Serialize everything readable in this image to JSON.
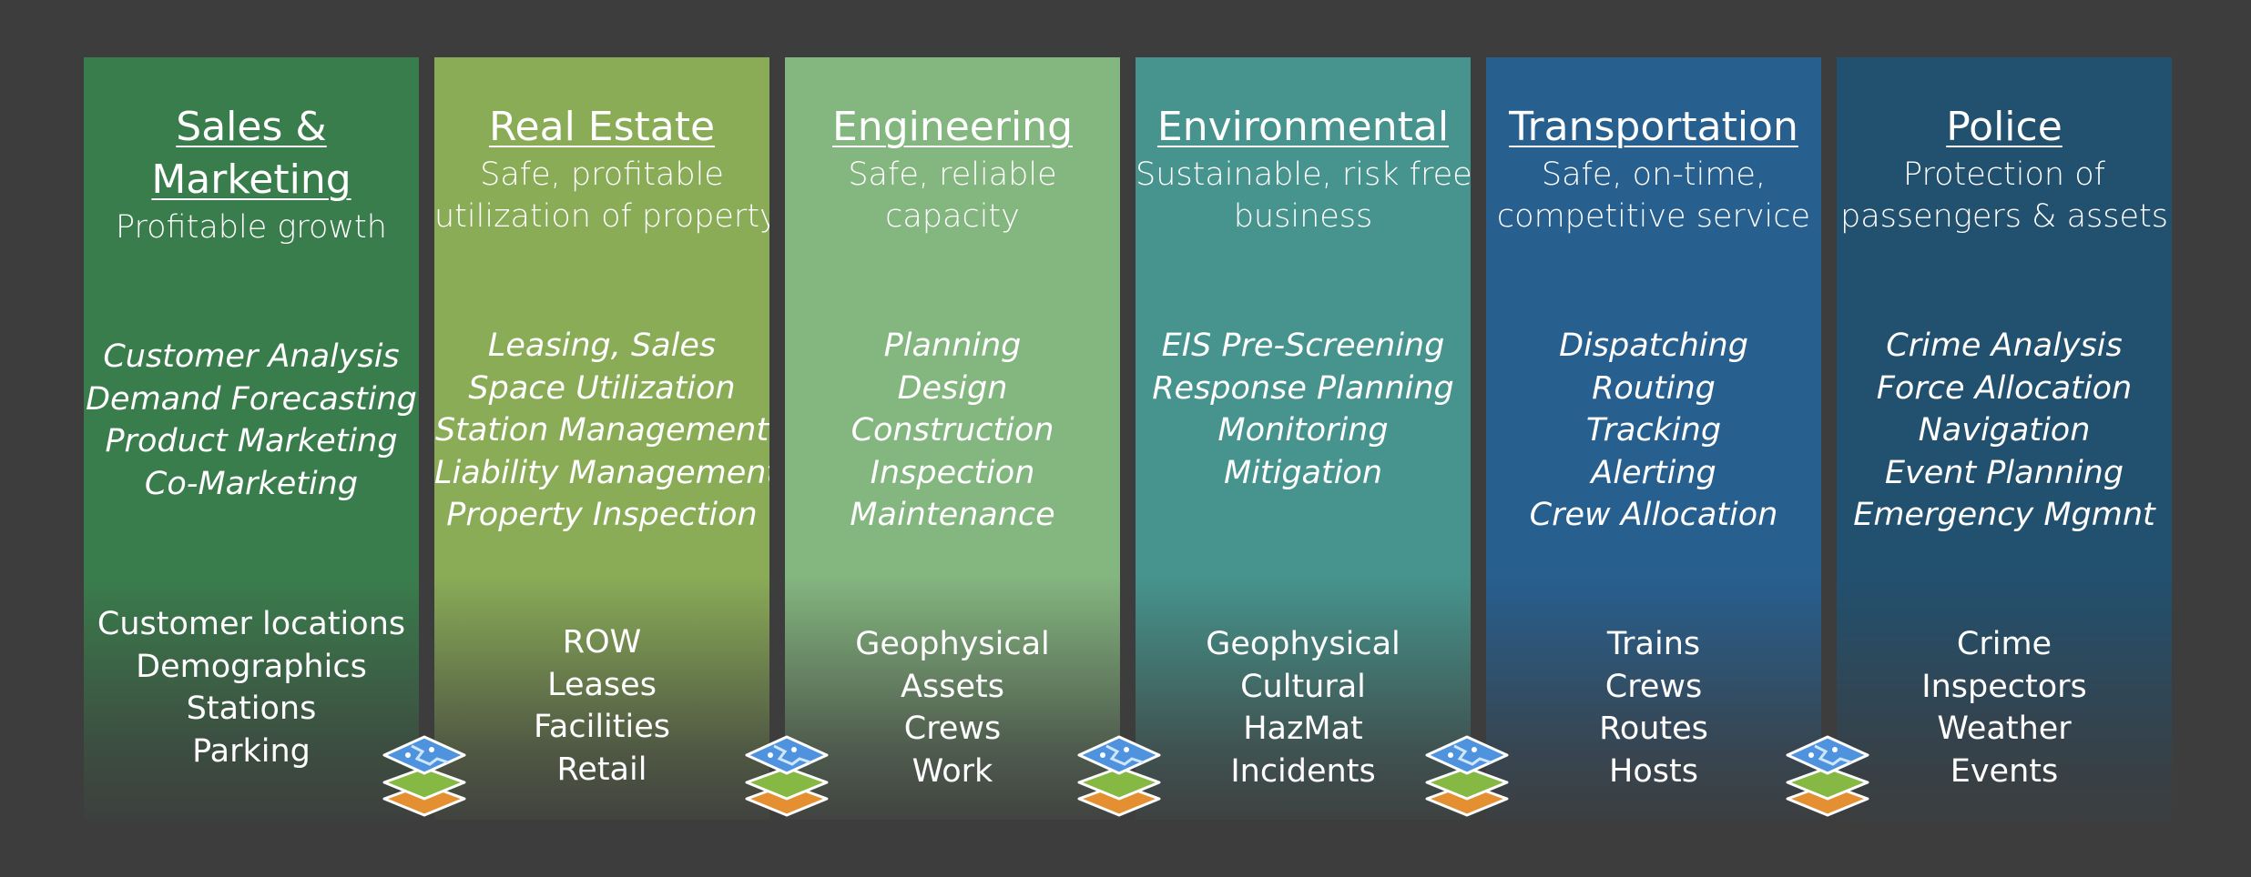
{
  "colors": {
    "background": "#3d3d3d",
    "text": "#ffffff",
    "columns": [
      "#3a7d4c",
      "#8aac57",
      "#84b67f",
      "#46948d",
      "#275f8f",
      "#22506f"
    ]
  },
  "columns": [
    {
      "title_lines": [
        "Sales &",
        "Marketing"
      ],
      "subtitle_lines": [
        "Profitable growth"
      ],
      "tasks": [
        "Customer Analysis",
        "Demand Forecasting",
        "Product Marketing",
        "Co-Marketing"
      ],
      "datasets": [
        "Customer locations",
        "Demographics",
        "Stations",
        "Parking"
      ]
    },
    {
      "title_lines": [
        "Real Estate"
      ],
      "subtitle_lines": [
        "Safe, profitable",
        "utilization of property"
      ],
      "tasks": [
        "Leasing, Sales",
        "Space Utilization",
        "Station Management",
        "Liability Management",
        "Property Inspection"
      ],
      "datasets": [
        "ROW",
        "Leases",
        "Facilities",
        "Retail"
      ]
    },
    {
      "title_lines": [
        "Engineering"
      ],
      "subtitle_lines": [
        "Safe, reliable",
        "capacity"
      ],
      "tasks": [
        "Planning",
        "Design",
        "Construction",
        "Inspection",
        "Maintenance"
      ],
      "datasets": [
        "Geophysical",
        "Assets",
        "Crews",
        "Work"
      ]
    },
    {
      "title_lines": [
        "Environmental"
      ],
      "subtitle_lines": [
        "Sustainable, risk free",
        "business"
      ],
      "tasks": [
        "EIS Pre-Screening",
        "Response Planning",
        "Monitoring",
        "Mitigation"
      ],
      "datasets": [
        "Geophysical",
        "Cultural",
        "HazMat",
        "Incidents"
      ]
    },
    {
      "title_lines": [
        "Transportation"
      ],
      "subtitle_lines": [
        "Safe, on-time,",
        "competitive service"
      ],
      "tasks": [
        "Dispatching",
        "Routing",
        "Tracking",
        "Alerting",
        "Crew Allocation"
      ],
      "datasets": [
        "Trains",
        "Crews",
        "Routes",
        "Hosts"
      ]
    },
    {
      "title_lines": [
        "Police"
      ],
      "subtitle_lines": [
        "Protection of",
        "passengers & assets"
      ],
      "tasks": [
        "Crime Analysis",
        "Force Allocation",
        "Navigation",
        "Event Planning",
        "Emergency Mgmnt"
      ],
      "datasets": [
        "Crime",
        "Inspectors",
        "Weather",
        "Events"
      ]
    }
  ],
  "connector_icons": [
    "map-layers-icon",
    "map-layers-icon",
    "map-layers-icon",
    "map-layers-icon",
    "map-layers-icon"
  ]
}
